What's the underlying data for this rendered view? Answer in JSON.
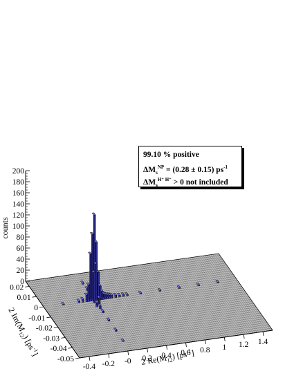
{
  "chart_data": {
    "type": "3d-histogram",
    "zlabel": "counts",
    "xlabel_main": "2 Re(M",
    "xlabel_sub": "12",
    "xlabel_end": ") [ps",
    "xlabel_sup": "-1",
    "xlabel_close": "]",
    "ylabel_main": "2 Im(M",
    "ylabel_sub": "12",
    "ylabel_end": ") [ps",
    "ylabel_sup": "-1",
    "ylabel_close": "]",
    "x_ticks": [
      "-0.4",
      "-0.2",
      "-0",
      "0.2",
      "0.4",
      "0.6",
      "0.8",
      "1",
      "1.2",
      "1.4"
    ],
    "x_tick_values": [
      -0.4,
      -0.2,
      0,
      0.2,
      0.4,
      0.6,
      0.8,
      1.0,
      1.2,
      1.4
    ],
    "y_ticks": [
      "0.02",
      "0.01",
      "0",
      "-0.01",
      "-0.02",
      "-0.03",
      "-0.04",
      "-0.05"
    ],
    "y_tick_values": [
      0.02,
      0.01,
      0,
      -0.01,
      -0.02,
      -0.03,
      -0.04,
      -0.05
    ],
    "z_ticks": [
      "0",
      "20",
      "40",
      "60",
      "80",
      "100",
      "120",
      "140",
      "160",
      "180",
      "200"
    ],
    "z_tick_values": [
      0,
      20,
      40,
      60,
      80,
      100,
      120,
      140,
      160,
      180,
      200
    ],
    "xlim": [
      -0.5,
      1.5
    ],
    "ylim": [
      -0.05,
      0.025
    ],
    "zlim": [
      0,
      200
    ],
    "bar_color": "#4a4ad0",
    "bins": [
      {
        "x": 0.02,
        "y": 0.0,
        "value": 155
      },
      {
        "x": 0.0,
        "y": 0.0,
        "value": 120
      },
      {
        "x": 0.04,
        "y": 0.0,
        "value": 105
      },
      {
        "x": -0.02,
        "y": 0.0,
        "value": 85
      },
      {
        "x": 0.02,
        "y": -0.002,
        "value": 70
      },
      {
        "x": 0.06,
        "y": 0.0,
        "value": 50
      },
      {
        "x": 0.0,
        "y": -0.002,
        "value": 55
      },
      {
        "x": -0.04,
        "y": 0.0,
        "value": 30
      },
      {
        "x": 0.08,
        "y": 0.0,
        "value": 25
      },
      {
        "x": 0.02,
        "y": 0.002,
        "value": 22
      },
      {
        "x": 0.1,
        "y": 0.0,
        "value": 15
      },
      {
        "x": -0.06,
        "y": 0.0,
        "value": 12
      },
      {
        "x": 0.12,
        "y": 0.0,
        "value": 10
      },
      {
        "x": 0.14,
        "y": 0.0,
        "value": 8
      },
      {
        "x": 0.16,
        "y": 0.0,
        "value": 7
      },
      {
        "x": 0.18,
        "y": 0.0,
        "value": 6
      },
      {
        "x": 0.2,
        "y": 0.0,
        "value": 5
      },
      {
        "x": 0.24,
        "y": 0.0,
        "value": 4
      },
      {
        "x": 0.28,
        "y": 0.0,
        "value": 3
      },
      {
        "x": 0.32,
        "y": 0.0,
        "value": 3
      },
      {
        "x": 0.36,
        "y": 0.0,
        "value": 2
      },
      {
        "x": -0.1,
        "y": 0.0,
        "value": 5
      },
      {
        "x": -0.14,
        "y": 0.0,
        "value": 3
      },
      {
        "x": 0.04,
        "y": -0.004,
        "value": 12
      },
      {
        "x": 0.0,
        "y": -0.006,
        "value": 8
      },
      {
        "x": 0.02,
        "y": -0.008,
        "value": 5
      },
      {
        "x": 0.06,
        "y": 0.002,
        "value": 6
      },
      {
        "x": 0.02,
        "y": 0.006,
        "value": 5
      },
      {
        "x": 0.02,
        "y": 0.01,
        "value": 3
      },
      {
        "x": 0.02,
        "y": 0.016,
        "value": 2
      },
      {
        "x": 0.02,
        "y": -0.012,
        "value": 3
      },
      {
        "x": 0.02,
        "y": -0.02,
        "value": 2
      },
      {
        "x": 0.02,
        "y": -0.03,
        "value": 2
      },
      {
        "x": 0.02,
        "y": -0.04,
        "value": 1
      },
      {
        "x": 0.5,
        "y": 0.0,
        "value": 1
      },
      {
        "x": 0.7,
        "y": 0.0,
        "value": 1
      },
      {
        "x": 0.9,
        "y": 0.0,
        "value": 1
      },
      {
        "x": 1.1,
        "y": 0.0,
        "value": 1
      },
      {
        "x": 1.3,
        "y": 0.0,
        "value": 1
      },
      {
        "x": -0.3,
        "y": 0.0,
        "value": 1
      }
    ]
  },
  "legend": {
    "line1": "99.10 % positive",
    "line2_a": "ΔM",
    "line2_sub": "s",
    "line2_sup": "NP",
    "line2_b": " = (0.28 ± 0.15) ps",
    "line2_sup2": "-1",
    "line3_a": "ΔM",
    "line3_sub": "s",
    "line3_sup": "H⁺ H⁺",
    "line3_b": " > 0 not included"
  }
}
